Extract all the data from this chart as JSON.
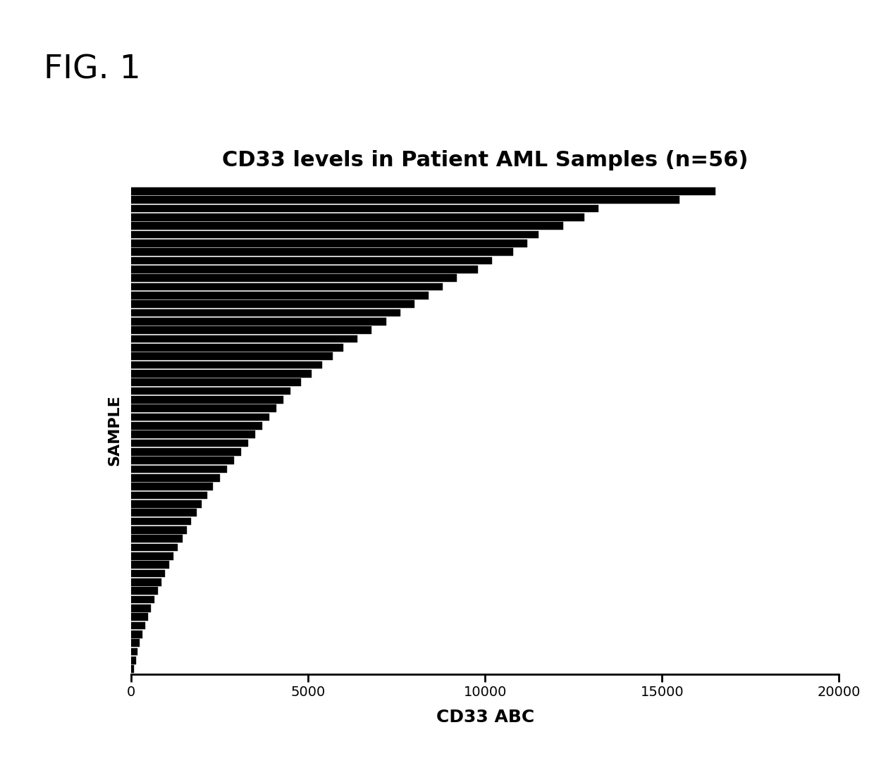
{
  "title": "CD33 levels in Patient AML Samples (n=56)",
  "xlabel": "CD33 ABC",
  "ylabel": "SAMPLE",
  "fig_label": "FIG. 1",
  "xlim": [
    0,
    20000
  ],
  "xticks": [
    0,
    5000,
    10000,
    15000,
    20000
  ],
  "n_bars": 56,
  "hatch": "----",
  "bar_color": "black",
  "bar_edgecolor": "black",
  "background_color": "white",
  "title_fontsize": 22,
  "xlabel_fontsize": 18,
  "ylabel_fontsize": 16,
  "fig_label_fontsize": 34,
  "values": [
    16500,
    15500,
    13200,
    12800,
    12200,
    11500,
    11200,
    10800,
    10200,
    9800,
    9200,
    8800,
    8400,
    8000,
    7600,
    7200,
    6800,
    6400,
    6000,
    5700,
    5400,
    5100,
    4800,
    4500,
    4300,
    4100,
    3900,
    3700,
    3500,
    3300,
    3100,
    2900,
    2700,
    2500,
    2300,
    2150,
    2000,
    1850,
    1700,
    1580,
    1450,
    1320,
    1200,
    1080,
    960,
    850,
    750,
    650,
    560,
    470,
    390,
    310,
    240,
    180,
    130,
    80
  ]
}
